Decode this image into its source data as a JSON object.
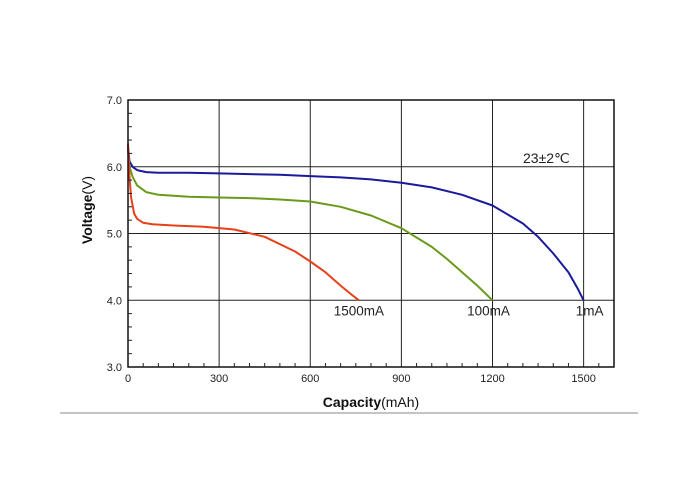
{
  "chart_data": {
    "type": "line",
    "title": "",
    "xlabel": "Capacity",
    "xlabel_unit": "(mAh)",
    "ylabel": "Voltage",
    "ylabel_unit": "(V)",
    "xlim": [
      0,
      1600
    ],
    "ylim": [
      3.0,
      7.0
    ],
    "x_ticks": [
      0,
      300,
      600,
      900,
      1200,
      1500
    ],
    "y_ticks": [
      3.0,
      4.0,
      5.0,
      6.0,
      7.0
    ],
    "x_tick_labels": [
      "0",
      "300",
      "600",
      "900",
      "1200",
      "1500"
    ],
    "y_tick_labels": [
      "3.0",
      "4.0",
      "5.0",
      "6.0",
      "7.0"
    ],
    "grid": true,
    "annotation": "23±2℃",
    "series": [
      {
        "name": "1mA",
        "color": "#1a1a9a",
        "x": [
          0,
          5,
          15,
          30,
          60,
          100,
          200,
          300,
          400,
          500,
          600,
          700,
          800,
          900,
          1000,
          1100,
          1200,
          1300,
          1350,
          1400,
          1450,
          1480,
          1500
        ],
        "y": [
          6.3,
          6.08,
          6.0,
          5.95,
          5.92,
          5.91,
          5.91,
          5.9,
          5.89,
          5.88,
          5.86,
          5.84,
          5.81,
          5.76,
          5.69,
          5.58,
          5.42,
          5.15,
          4.95,
          4.7,
          4.42,
          4.18,
          4.0
        ]
      },
      {
        "name": "100mA",
        "color": "#6a9a1a",
        "x": [
          0,
          5,
          15,
          30,
          60,
          100,
          200,
          300,
          400,
          500,
          600,
          700,
          800,
          900,
          1000,
          1050,
          1100,
          1150,
          1200
        ],
        "y": [
          6.25,
          6.0,
          5.85,
          5.72,
          5.62,
          5.58,
          5.55,
          5.54,
          5.53,
          5.51,
          5.48,
          5.4,
          5.27,
          5.08,
          4.8,
          4.62,
          4.42,
          4.22,
          4.0
        ]
      },
      {
        "name": "1500mA",
        "color": "#e8401a",
        "x": [
          0,
          5,
          10,
          20,
          30,
          50,
          80,
          150,
          250,
          350,
          450,
          550,
          600,
          650,
          700,
          740,
          760
        ],
        "y": [
          6.35,
          5.85,
          5.55,
          5.3,
          5.22,
          5.16,
          5.14,
          5.12,
          5.1,
          5.06,
          4.95,
          4.73,
          4.58,
          4.42,
          4.22,
          4.07,
          4.0
        ]
      }
    ]
  }
}
